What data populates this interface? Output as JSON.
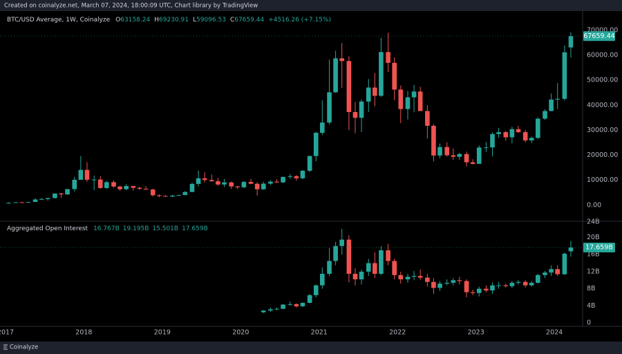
{
  "header": "Created on coinalyze.net, March 07, 2024, 18:00:09 UTC, Chart library by TradingView",
  "footer": "Coinalyze",
  "chart_data": [
    {
      "type": "candlestick",
      "title": "BTC/USD Average, 1W, Coinalyze",
      "legend": [
        {
          "label": "O",
          "value": 63158.24
        },
        {
          "label": "H",
          "value": 69230.91
        },
        {
          "label": "L",
          "value": 59096.53
        },
        {
          "label": "C",
          "value": 67659.44
        }
      ],
      "change_label": "+4516.26 (+7.15%)",
      "up_color": "#26a69a",
      "down_color": "#ef5350",
      "grid": false,
      "xlim": [
        2016.93,
        2024.36
      ],
      "ylim": [
        -6400,
        77700
      ],
      "yticks": [
        {
          "value": 0,
          "label": "0.00"
        },
        {
          "value": 10000,
          "label": "10000.00"
        },
        {
          "value": 20000,
          "label": "20000.00"
        },
        {
          "value": 30000,
          "label": "30000.00"
        },
        {
          "value": 40000,
          "label": "40000.00"
        },
        {
          "value": 50000,
          "label": "50000.00"
        },
        {
          "value": 60000,
          "label": "60000.00"
        },
        {
          "value": 70000,
          "label": "70000.00"
        }
      ],
      "x": [
        2017.04,
        2017.13,
        2017.21,
        2017.29,
        2017.38,
        2017.46,
        2017.54,
        2017.63,
        2017.71,
        2017.79,
        2017.88,
        2017.96,
        2018.04,
        2018.13,
        2018.21,
        2018.29,
        2018.38,
        2018.46,
        2018.54,
        2018.63,
        2018.71,
        2018.79,
        2018.88,
        2018.96,
        2019.04,
        2019.13,
        2019.21,
        2019.29,
        2019.38,
        2019.46,
        2019.54,
        2019.63,
        2019.71,
        2019.79,
        2019.88,
        2019.96,
        2020.04,
        2020.13,
        2020.21,
        2020.29,
        2020.38,
        2020.46,
        2020.54,
        2020.63,
        2020.71,
        2020.79,
        2020.88,
        2020.96,
        2021.04,
        2021.13,
        2021.21,
        2021.29,
        2021.38,
        2021.46,
        2021.54,
        2021.63,
        2021.71,
        2021.79,
        2021.88,
        2021.96,
        2022.04,
        2022.13,
        2022.21,
        2022.29,
        2022.38,
        2022.46,
        2022.54,
        2022.63,
        2022.71,
        2022.79,
        2022.88,
        2022.96,
        2023.04,
        2023.13,
        2023.21,
        2023.29,
        2023.38,
        2023.46,
        2023.54,
        2023.63,
        2023.71,
        2023.79,
        2023.88,
        2023.96,
        2024.04,
        2024.13,
        2024.21
      ],
      "open": [
        963,
        970,
        1190,
        1080,
        1350,
        2300,
        2480,
        2870,
        4700,
        4340,
        6470,
        10200,
        14150,
        10200,
        10300,
        6900,
        9250,
        7500,
        6400,
        7700,
        7000,
        6600,
        6300,
        4000,
        3700,
        3450,
        3850,
        4100,
        5300,
        8550,
        10800,
        10100,
        9600,
        8300,
        9150,
        7550,
        7200,
        9350,
        8600,
        6400,
        8650,
        9450,
        9150,
        11350,
        11650,
        10800,
        13800,
        19700,
        29000,
        33100,
        45200,
        58800,
        57700,
        37300,
        35000,
        41500,
        47100,
        43800,
        61300,
        57000,
        46300,
        38500,
        43200,
        45500,
        37700,
        31800,
        19900,
        23300,
        20000,
        19400,
        20500,
        17200,
        16550,
        23100,
        23150,
        28500,
        29250,
        27200,
        30450,
        29250,
        25950,
        26950,
        34650,
        37700,
        42300,
        42600,
        63158.24
      ],
      "high": [
        1190,
        1200,
        1350,
        1350,
        2800,
        3000,
        2900,
        4750,
        5000,
        6450,
        11400,
        19700,
        17200,
        11800,
        11700,
        9800,
        10000,
        7800,
        8500,
        7750,
        7400,
        7700,
        6600,
        4400,
        4100,
        4200,
        4150,
        5650,
        9000,
        13900,
        13200,
        12300,
        10950,
        10500,
        9500,
        7750,
        9600,
        10500,
        9200,
        9450,
        10080,
        10400,
        11450,
        12500,
        12050,
        14100,
        19900,
        29300,
        42000,
        58300,
        61800,
        64900,
        59600,
        41300,
        42400,
        50500,
        52900,
        67000,
        69000,
        59100,
        47900,
        45800,
        48200,
        47400,
        40000,
        32400,
        24700,
        25200,
        22800,
        21000,
        21450,
        18400,
        23950,
        25250,
        29200,
        31000,
        29800,
        31400,
        31800,
        30100,
        27450,
        35200,
        38400,
        44700,
        48900,
        63900,
        69230.91
      ],
      "low": [
        750,
        920,
        890,
        1070,
        1350,
        2100,
        1830,
        2670,
        2970,
        4110,
        5500,
        10800,
        9400,
        6000,
        6600,
        6500,
        7000,
        5800,
        6100,
        5900,
        6100,
        6200,
        3500,
        3150,
        3400,
        3350,
        3700,
        4050,
        5300,
        7500,
        9100,
        9400,
        7800,
        7300,
        6550,
        6450,
        6850,
        8450,
        3850,
        6150,
        8100,
        8900,
        8900,
        10550,
        9850,
        10400,
        13250,
        17600,
        28100,
        32300,
        45000,
        47000,
        30000,
        28800,
        29300,
        37300,
        39600,
        43300,
        53300,
        42000,
        32900,
        34300,
        37200,
        37700,
        26700,
        17600,
        18800,
        19500,
        18100,
        18200,
        15500,
        16300,
        16500,
        21350,
        19550,
        26900,
        25800,
        24800,
        28900,
        25150,
        24900,
        26550,
        34100,
        37600,
        38500,
        41900,
        59096.53
      ],
      "close": [
        970,
        1190,
        1080,
        1350,
        2300,
        2480,
        2870,
        4700,
        4340,
        6470,
        10200,
        14150,
        10200,
        10300,
        6900,
        9250,
        7500,
        6400,
        7700,
        7000,
        6600,
        6300,
        4000,
        3700,
        3450,
        3850,
        4100,
        5300,
        8550,
        10800,
        10100,
        9600,
        8300,
        9150,
        7550,
        7200,
        9350,
        8600,
        6400,
        8650,
        9450,
        9150,
        11350,
        11650,
        10800,
        13800,
        19700,
        29000,
        33100,
        45200,
        58800,
        57700,
        37300,
        35000,
        41500,
        47100,
        43800,
        61300,
        57000,
        46300,
        38500,
        43200,
        45500,
        37700,
        31800,
        19900,
        23300,
        20000,
        19400,
        20500,
        17200,
        16550,
        23100,
        23150,
        28500,
        29250,
        27200,
        30450,
        29250,
        25950,
        26950,
        34650,
        37700,
        42300,
        42600,
        61200,
        67659.44
      ]
    },
    {
      "type": "candlestick",
      "title": "Aggregated Open Interest",
      "legend_values": [
        "16.767B",
        "19.195B",
        "15.501B",
        "17.659B"
      ],
      "last_label": "17.659B",
      "up_color": "#26a69a",
      "down_color": "#ef5350",
      "grid": false,
      "xlim": [
        2016.93,
        2024.36
      ],
      "ylim": [
        -0.8,
        23.8
      ],
      "xticks": [
        2017,
        2018,
        2019,
        2020,
        2021,
        2022,
        2023,
        2024
      ],
      "yticks": [
        0,
        {
          "value": 4,
          "label": "4B"
        },
        {
          "value": 8,
          "label": "8B"
        },
        {
          "value": 12,
          "label": "12B"
        },
        {
          "value": 16,
          "label": "16B"
        },
        {
          "value": 20,
          "label": "20B"
        },
        {
          "value": 24,
          "label": "24B"
        }
      ],
      "x": [
        2020.29,
        2020.38,
        2020.46,
        2020.54,
        2020.63,
        2020.71,
        2020.79,
        2020.88,
        2020.96,
        2021.04,
        2021.13,
        2021.21,
        2021.29,
        2021.38,
        2021.46,
        2021.54,
        2021.63,
        2021.71,
        2021.79,
        2021.88,
        2021.96,
        2022.04,
        2022.13,
        2022.21,
        2022.29,
        2022.38,
        2022.46,
        2022.54,
        2022.63,
        2022.71,
        2022.79,
        2022.88,
        2022.96,
        2023.04,
        2023.13,
        2023.21,
        2023.29,
        2023.38,
        2023.46,
        2023.54,
        2023.63,
        2023.71,
        2023.79,
        2023.88,
        2023.96,
        2024.04,
        2024.13,
        2024.21
      ],
      "open": [
        2.5,
        2.9,
        3.2,
        3.3,
        4.3,
        4.4,
        3.9,
        4.7,
        6.5,
        8.8,
        11.5,
        14.5,
        18.0,
        19.5,
        11.5,
        10.2,
        12.0,
        14.0,
        11.5,
        17.0,
        14.5,
        11.2,
        10.2,
        10.8,
        11.0,
        10.6,
        9.6,
        8.2,
        9.2,
        9.4,
        10.0,
        9.8,
        7.2,
        7.0,
        8.0,
        7.6,
        8.8,
        8.8,
        8.6,
        9.4,
        9.6,
        8.8,
        9.4,
        11.2,
        11.8,
        12.6,
        11.4,
        16.767
      ],
      "high": [
        3.0,
        3.6,
        3.6,
        4.4,
        5.0,
        4.6,
        4.8,
        6.8,
        9.0,
        13.0,
        17.5,
        19.0,
        22.0,
        20.5,
        12.8,
        12.5,
        15.0,
        16.5,
        18.0,
        18.5,
        15.0,
        12.0,
        11.5,
        12.2,
        12.5,
        11.5,
        10.5,
        9.8,
        10.2,
        10.5,
        10.8,
        10.2,
        7.8,
        8.5,
        8.8,
        9.5,
        9.6,
        9.2,
        9.8,
        10.0,
        10.0,
        9.8,
        11.5,
        12.2,
        13.5,
        13.5,
        16.5,
        19.195
      ],
      "low": [
        2.3,
        2.6,
        3.0,
        3.2,
        4.0,
        3.6,
        3.7,
        4.6,
        6.0,
        8.0,
        11.0,
        13.5,
        16.0,
        9.5,
        8.8,
        9.0,
        11.0,
        10.5,
        11.2,
        13.5,
        10.2,
        9.2,
        9.4,
        10.0,
        10.1,
        8.5,
        6.8,
        7.5,
        8.8,
        8.8,
        9.0,
        6.0,
        6.5,
        6.2,
        7.2,
        6.8,
        8.0,
        8.3,
        8.1,
        9.0,
        8.3,
        8.5,
        9.2,
        10.5,
        11.0,
        11.0,
        11.2,
        15.501
      ],
      "close": [
        2.9,
        3.2,
        3.3,
        4.3,
        4.4,
        3.9,
        4.7,
        6.5,
        8.8,
        11.5,
        14.5,
        18.0,
        19.5,
        11.5,
        10.2,
        12.0,
        14.0,
        11.5,
        17.0,
        14.5,
        11.2,
        10.2,
        10.8,
        11.0,
        10.6,
        9.6,
        8.2,
        9.2,
        9.4,
        10.0,
        9.8,
        7.2,
        7.0,
        8.0,
        7.6,
        8.8,
        8.8,
        8.6,
        9.4,
        9.6,
        8.8,
        9.4,
        11.2,
        11.8,
        12.6,
        11.4,
        16.2,
        17.659
      ]
    }
  ]
}
